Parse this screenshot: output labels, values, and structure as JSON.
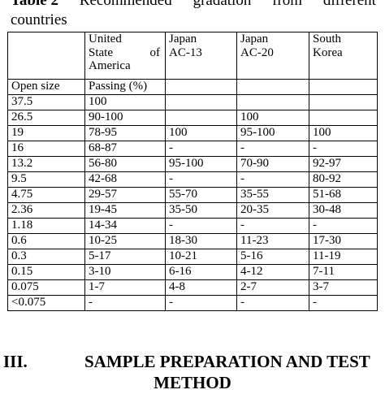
{
  "caption": {
    "label": "Table 2",
    "words": [
      "Recommended",
      "gradation",
      "from",
      "different"
    ],
    "line2": "countries"
  },
  "table": {
    "headers": {
      "corner": "",
      "usa_lines": [
        "United",
        "State of",
        "America"
      ],
      "japan13_lines": [
        "Japan",
        "AC-13"
      ],
      "japan20_lines": [
        "Japan",
        "AC-20"
      ],
      "korea_lines": [
        "South",
        "Korea"
      ]
    },
    "subheader": {
      "open_size": "Open size",
      "passing": "Passing (%)"
    },
    "rows": [
      [
        "37.5",
        "100",
        "",
        "",
        ""
      ],
      [
        "26.5",
        "90-100",
        "",
        "100",
        ""
      ],
      [
        "19",
        "78-95",
        "100",
        "95-100",
        "100"
      ],
      [
        "16",
        "68-87",
        "-",
        "-",
        "-"
      ],
      [
        "13.2",
        "56-80",
        "95-100",
        "70-90",
        "92-97"
      ],
      [
        "9.5",
        "42-68",
        "-",
        "-",
        "80-92"
      ],
      [
        "4.75",
        "29-57",
        "55-70",
        "35-55",
        "51-68"
      ],
      [
        "2.36",
        "19-45",
        "35-50",
        "20-35",
        "30-48"
      ],
      [
        "1.18",
        "14-34",
        "-",
        "-",
        "-"
      ],
      [
        "0.6",
        "10-25",
        "18-30",
        "11-23",
        "17-30"
      ],
      [
        "0.3",
        "5-17",
        "10-21",
        "5-16",
        "11-19"
      ],
      [
        "0.15",
        "3-10",
        "6-16",
        "4-12",
        "7-11"
      ],
      [
        "0.075",
        "1-7",
        "4-8",
        "2-7",
        "3-7"
      ],
      [
        "<0.075",
        "-",
        "-",
        "-",
        "-"
      ]
    ]
  },
  "section": {
    "number": "III.",
    "title_line1": "SAMPLE PREPARATION AND TEST",
    "title_line2": "METHOD"
  }
}
